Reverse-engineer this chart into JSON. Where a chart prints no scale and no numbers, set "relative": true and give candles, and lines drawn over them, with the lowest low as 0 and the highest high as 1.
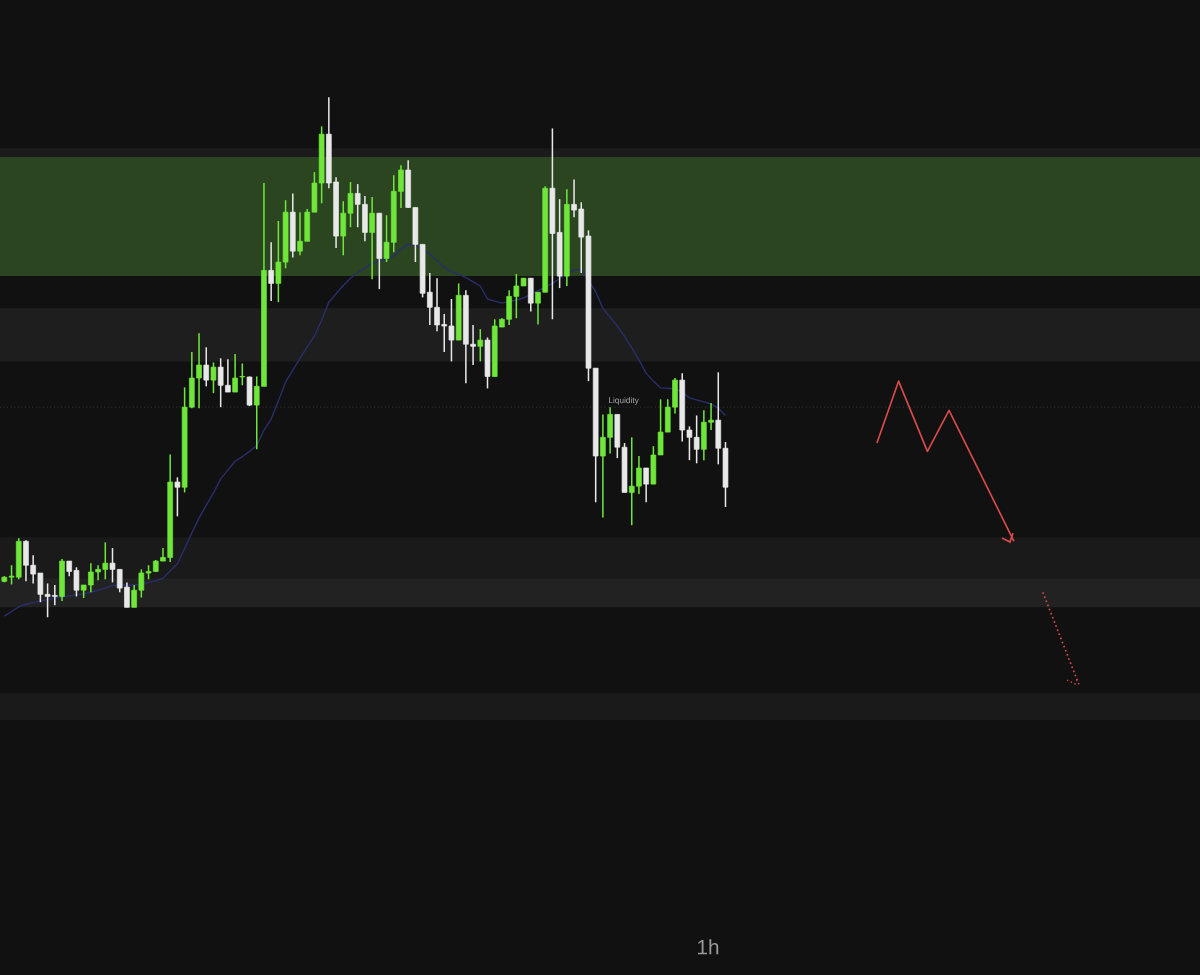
{
  "chart_data": {
    "type": "candlestick",
    "title": "1h",
    "relative": true,
    "categories": [
      null,
      null,
      null,
      null,
      null,
      null,
      null,
      null,
      null,
      null,
      null,
      null,
      null,
      null,
      null,
      null,
      null,
      null,
      null,
      null,
      null,
      null,
      null,
      null,
      null,
      null,
      null,
      null,
      null,
      null,
      null,
      null,
      null,
      null,
      null,
      null,
      null,
      null,
      null,
      null,
      null,
      null,
      null,
      null,
      null,
      null,
      null,
      null,
      null,
      null,
      null,
      null,
      null,
      null,
      null,
      null,
      null,
      null,
      null,
      null,
      null,
      null,
      null,
      null,
      null,
      null,
      null,
      null,
      null,
      null,
      null,
      null,
      null,
      null,
      null,
      null,
      null,
      null,
      null,
      null,
      null,
      null,
      null,
      null,
      null,
      null,
      null,
      null,
      null,
      null,
      null,
      null,
      null,
      null,
      null,
      null,
      null,
      null,
      null,
      null,
      null,
      null,
      null,
      null,
      null,
      null,
      null,
      null,
      null,
      null,
      null,
      null,
      null,
      null,
      null,
      null,
      null,
      null,
      null,
      null,
      null,
      null,
      null,
      null,
      null,
      null,
      null,
      null,
      null,
      null,
      null,
      null,
      null,
      null,
      null,
      null,
      null,
      null,
      null,
      null,
      null,
      null,
      null,
      null,
      null,
      null,
      null,
      null,
      null,
      null
    ],
    "ohlc": [
      [
        0.069,
        0.079,
        0.067,
        0.077
      ],
      [
        0.077,
        0.1,
        0.063,
        0.079
      ],
      [
        0.077,
        0.152,
        0.073,
        0.146
      ],
      [
        0.146,
        0.148,
        0.069,
        0.1
      ],
      [
        0.1,
        0.119,
        0.065,
        0.083
      ],
      [
        0.085,
        0.085,
        0.029,
        0.044
      ],
      [
        0.044,
        0.065,
        0,
        0.04
      ],
      [
        0.042,
        0.062,
        0.023,
        0.04
      ],
      [
        0.04,
        0.112,
        0.031,
        0.108
      ],
      [
        0.108,
        0.108,
        0.079,
        0.088
      ],
      [
        0.09,
        0.096,
        0.04,
        0.052
      ],
      [
        0.052,
        0.062,
        0.037,
        0.062
      ],
      [
        0.062,
        0.104,
        0.048,
        0.087
      ],
      [
        0.087,
        0.1,
        0.071,
        0.092
      ],
      [
        0.092,
        0.144,
        0.073,
        0.104
      ],
      [
        0.104,
        0.133,
        0.067,
        0.092
      ],
      [
        0.092,
        0.092,
        0.048,
        0.056
      ],
      [
        0.058,
        0.067,
        0.019,
        0.019
      ],
      [
        0.019,
        0.062,
        0.019,
        0.052
      ],
      [
        0.052,
        0.092,
        0.038,
        0.085
      ],
      [
        0.085,
        0.1,
        0.073,
        0.088
      ],
      [
        0.088,
        0.11,
        0.087,
        0.108
      ],
      [
        0.108,
        0.133,
        0.108,
        0.115
      ],
      [
        0.115,
        0.313,
        0.106,
        0.26
      ],
      [
        0.26,
        0.269,
        0.194,
        0.25
      ],
      [
        0.25,
        0.442,
        0.24,
        0.404
      ],
      [
        0.404,
        0.51,
        0.402,
        0.46
      ],
      [
        0.46,
        0.546,
        0.402,
        0.485
      ],
      [
        0.485,
        0.519,
        0.444,
        0.456
      ],
      [
        0.456,
        0.49,
        0.431,
        0.481
      ],
      [
        0.481,
        0.498,
        0.404,
        0.446
      ],
      [
        0.446,
        0.496,
        0.433,
        0.433
      ],
      [
        0.433,
        0.506,
        0.433,
        0.46
      ],
      [
        0.462,
        0.488,
        0.446,
        0.463
      ],
      [
        0.462,
        0.463,
        0.406,
        0.408
      ],
      [
        0.408,
        0.463,
        0.323,
        0.444
      ],
      [
        0.444,
        0.835,
        0.444,
        0.667
      ],
      [
        0.667,
        0.721,
        0.608,
        0.642
      ],
      [
        0.642,
        0.762,
        0.606,
        0.683
      ],
      [
        0.683,
        0.802,
        0.671,
        0.779
      ],
      [
        0.779,
        0.815,
        0.692,
        0.704
      ],
      [
        0.704,
        0.779,
        0.696,
        0.723
      ],
      [
        0.723,
        0.785,
        0.723,
        0.779
      ],
      [
        0.779,
        0.856,
        0.779,
        0.835
      ],
      [
        0.835,
        0.944,
        0.796,
        0.929
      ],
      [
        0.929,
        1,
        0.825,
        0.835
      ],
      [
        0.837,
        0.846,
        0.71,
        0.733
      ],
      [
        0.733,
        0.8,
        0.696,
        0.777
      ],
      [
        0.777,
        0.837,
        0.75,
        0.815
      ],
      [
        0.815,
        0.833,
        0.75,
        0.794
      ],
      [
        0.794,
        0.81,
        0.723,
        0.74
      ],
      [
        0.74,
        0.808,
        0.65,
        0.777
      ],
      [
        0.777,
        0.777,
        0.631,
        0.69
      ],
      [
        0.69,
        0.773,
        0.683,
        0.721
      ],
      [
        0.721,
        0.85,
        0.702,
        0.819
      ],
      [
        0.819,
        0.869,
        0.787,
        0.86
      ],
      [
        0.86,
        0.879,
        0.787,
        0.788
      ],
      [
        0.788,
        0.788,
        0.683,
        0.717
      ],
      [
        0.717,
        0.717,
        0.615,
        0.623
      ],
      [
        0.625,
        0.662,
        0.562,
        0.596
      ],
      [
        0.596,
        0.652,
        0.55,
        0.562
      ],
      [
        0.563,
        0.583,
        0.51,
        0.56
      ],
      [
        0.56,
        0.612,
        0.492,
        0.533
      ],
      [
        0.533,
        0.642,
        0.533,
        0.619
      ],
      [
        0.619,
        0.629,
        0.45,
        0.525
      ],
      [
        0.525,
        0.562,
        0.485,
        0.521
      ],
      [
        0.521,
        0.554,
        0.492,
        0.533
      ],
      [
        0.533,
        0.538,
        0.44,
        0.463
      ],
      [
        0.463,
        0.573,
        0.463,
        0.56
      ],
      [
        0.558,
        0.575,
        0.558,
        0.573
      ],
      [
        0.573,
        0.629,
        0.562,
        0.617
      ],
      [
        0.617,
        0.66,
        0.575,
        0.637
      ],
      [
        0.637,
        0.652,
        0.637,
        0.652
      ],
      [
        0.652,
        0.652,
        0.588,
        0.604
      ],
      [
        0.604,
        0.625,
        0.563,
        0.625
      ],
      [
        0.625,
        0.829,
        0.625,
        0.825
      ],
      [
        0.825,
        0.94,
        0.573,
        0.738
      ],
      [
        0.74,
        0.804,
        0.633,
        0.656
      ],
      [
        0.656,
        0.823,
        0.637,
        0.794
      ],
      [
        0.794,
        0.842,
        0.769,
        0.783
      ],
      [
        0.785,
        0.798,
        0.662,
        0.731
      ],
      [
        0.733,
        0.744,
        0.454,
        0.479
      ],
      [
        0.479,
        0.479,
        0.221,
        0.31
      ],
      [
        0.31,
        0.39,
        0.192,
        0.346
      ],
      [
        0.346,
        0.404,
        0.315,
        0.39
      ],
      [
        0.39,
        0.39,
        0.306,
        0.327
      ],
      [
        0.327,
        0.335,
        0.24,
        0.24
      ],
      [
        0.24,
        0.346,
        0.177,
        0.252
      ],
      [
        0.252,
        0.31,
        0.237,
        0.287
      ],
      [
        0.287,
        0.287,
        0.221,
        0.256
      ],
      [
        0.256,
        0.329,
        0.256,
        0.312
      ],
      [
        0.312,
        0.419,
        0.312,
        0.356
      ],
      [
        0.356,
        0.419,
        0.356,
        0.404
      ],
      [
        0.404,
        0.46,
        0.392,
        0.456
      ],
      [
        0.456,
        0.469,
        0.338,
        0.36
      ],
      [
        0.36,
        0.367,
        0.302,
        0.346
      ],
      [
        0.346,
        0.388,
        0.296,
        0.323
      ],
      [
        0.323,
        0.398,
        0.302,
        0.375
      ],
      [
        0.375,
        0.412,
        0.36,
        0.379
      ],
      [
        0.379,
        0.471,
        0.294,
        0.325
      ],
      [
        0.325,
        0.337,
        0.212,
        0.25
      ],
      null,
      null,
      null,
      null,
      null,
      null,
      null,
      null,
      null,
      null,
      null,
      null,
      null,
      null,
      null,
      null,
      null,
      null,
      null,
      null,
      null,
      null,
      null,
      null,
      null,
      null,
      null,
      null,
      null,
      null,
      null,
      null,
      null,
      null,
      null,
      null,
      null,
      null,
      null,
      null,
      null,
      null,
      null,
      null,
      null,
      null,
      null,
      null,
      null
    ],
    "colors": [
      "#6fe63a",
      "#6fe63a",
      "#6fe63a",
      "#e8e8e8",
      "#e8e8e8",
      "#e8e8e8",
      "#e8e8e8",
      "#e8e8e8",
      "#6fe63a",
      "#e8e8e8",
      "#e8e8e8",
      "#6fe63a",
      "#6fe63a",
      "#6fe63a",
      "#6fe63a",
      "#e8e8e8",
      "#e8e8e8",
      "#e8e8e8",
      "#6fe63a",
      "#6fe63a",
      "#6fe63a",
      "#6fe63a",
      "#6fe63a",
      "#6fe63a",
      "#e8e8e8",
      "#6fe63a",
      "#6fe63a",
      "#6fe63a",
      "#e8e8e8",
      "#6fe63a",
      "#e8e8e8",
      "#e8e8e8",
      "#6fe63a",
      "#6fe63a",
      "#e8e8e8",
      "#6fe63a",
      "#6fe63a",
      "#e8e8e8",
      "#6fe63a",
      "#6fe63a",
      "#e8e8e8",
      "#6fe63a",
      "#6fe63a",
      "#6fe63a",
      "#6fe63a",
      "#e8e8e8",
      "#e8e8e8",
      "#6fe63a",
      "#6fe63a",
      "#e8e8e8",
      "#e8e8e8",
      "#6fe63a",
      "#e8e8e8",
      "#6fe63a",
      "#6fe63a",
      "#6fe63a",
      "#e8e8e8",
      "#e8e8e8",
      "#e8e8e8",
      "#e8e8e8",
      "#e8e8e8",
      "#e8e8e8",
      "#e8e8e8",
      "#6fe63a",
      "#e8e8e8",
      "#e8e8e8",
      "#6fe63a",
      "#e8e8e8",
      "#6fe63a",
      "#6fe63a",
      "#6fe63a",
      "#6fe63a",
      "#6fe63a",
      "#e8e8e8",
      "#6fe63a",
      "#6fe63a",
      "#e8e8e8",
      "#e8e8e8",
      "#6fe63a",
      "#e8e8e8",
      "#e8e8e8",
      "#e8e8e8",
      "#e8e8e8",
      "#6fe63a",
      "#6fe63a",
      "#e8e8e8",
      "#e8e8e8",
      "#6fe63a",
      "#6fe63a",
      "#e8e8e8",
      "#6fe63a",
      "#6fe63a",
      "#6fe63a",
      "#6fe63a",
      "#e8e8e8",
      "#e8e8e8",
      "#e8e8e8",
      "#6fe63a",
      "#6fe63a",
      "#e8e8e8",
      "#e8e8e8",
      null,
      null,
      null,
      null,
      null,
      null,
      null,
      null,
      null,
      null,
      null,
      null,
      null,
      null,
      null,
      null,
      null,
      null,
      null,
      null,
      null,
      null,
      null,
      null,
      null,
      null,
      null,
      null,
      null,
      null,
      null,
      null,
      null,
      null,
      null,
      null,
      null,
      null,
      null,
      null,
      null,
      null,
      null,
      null,
      null,
      null,
      null,
      null,
      null
    ],
    "series": [
      {
        "type": "line",
        "color": "#2a2e6c",
        "values": [
          0.002,
          0.011,
          0.02,
          0.025,
          0.028,
          0.031,
          0.034,
          0.037,
          0.039,
          0.041,
          0.043,
          0.045,
          0.048,
          0.052,
          0.056,
          0.061,
          0.062,
          0.062,
          0.062,
          0.064,
          0.067,
          0.07,
          0.075,
          0.089,
          0.103,
          0.132,
          0.162,
          0.191,
          0.215,
          0.239,
          0.266,
          0.283,
          0.3,
          0.309,
          0.319,
          0.33,
          0.36,
          0.381,
          0.416,
          0.452,
          0.475,
          0.498,
          0.52,
          0.541,
          0.571,
          0.606,
          0.622,
          0.638,
          0.652,
          0.663,
          0.672,
          0.681,
          0.685,
          0.689,
          0.695,
          0.708,
          0.717,
          0.715,
          0.708,
          0.698,
          0.686,
          0.673,
          0.664,
          0.66,
          0.653,
          0.645,
          0.637,
          0.612,
          0.608,
          0.604,
          0.607,
          0.61,
          0.614,
          0.621,
          0.628,
          0.635,
          0.642,
          0.651,
          0.661,
          0.668,
          0.669,
          0.648,
          0.626,
          0.594,
          0.577,
          0.56,
          0.54,
          0.518,
          0.495,
          0.469,
          0.454,
          0.441,
          0.44,
          0.44,
          0.432,
          0.422,
          0.418,
          0.414,
          0.41,
          0.402,
          0.388,
          null,
          null,
          null,
          null,
          null,
          null,
          null,
          null,
          null,
          null,
          null,
          null,
          null,
          null,
          null,
          null,
          null,
          null,
          null,
          null,
          null,
          null,
          null,
          null,
          null,
          null,
          null,
          null,
          null,
          null,
          null,
          null,
          null,
          null,
          null,
          null,
          null,
          null,
          null,
          null,
          null,
          null,
          null,
          null,
          null,
          null,
          null,
          null,
          null
        ]
      },
      {
        "type": "line",
        "color": "#d94a4a",
        "line_style": "solid",
        "values": [
          null,
          null,
          null,
          null,
          null,
          null,
          null,
          null,
          null,
          null,
          null,
          null,
          null,
          null,
          null,
          null,
          null,
          null,
          null,
          null,
          null,
          null,
          null,
          null,
          null,
          null,
          null,
          null,
          null,
          null,
          null,
          null,
          null,
          null,
          null,
          null,
          null,
          null,
          null,
          null,
          null,
          null,
          null,
          null,
          null,
          null,
          null,
          null,
          null,
          null,
          null,
          null,
          null,
          null,
          null,
          null,
          null,
          null,
          null,
          null,
          null,
          null,
          null,
          null,
          null,
          null,
          null,
          null,
          null,
          null,
          null,
          null,
          null,
          null,
          null,
          null,
          null,
          null,
          null,
          null,
          null,
          null,
          null,
          null,
          null,
          null,
          null,
          null,
          null,
          null,
          null,
          null,
          null,
          null,
          null,
          null,
          null,
          null,
          null,
          null,
          null,
          null,
          null,
          null,
          null,
          null,
          null,
          null,
          null,
          null,
          null,
          null,
          null,
          null,
          null,
          null,
          null,
          null,
          null,
          null,
          null,
          0.335,
          null,
          null,
          0.454,
          null,
          null,
          null,
          0.319,
          null,
          null,
          0.398,
          null,
          null,
          null,
          null,
          null,
          null,
          null,
          null,
          0.146,
          null,
          null,
          null,
          null,
          null,
          null,
          null,
          null,
          null
        ]
      },
      {
        "type": "line",
        "color": "#d94a4a",
        "line_style": "dotted",
        "values": [
          null,
          null,
          null,
          null,
          null,
          null,
          null,
          null,
          null,
          null,
          null,
          null,
          null,
          null,
          null,
          null,
          null,
          null,
          null,
          null,
          null,
          null,
          null,
          null,
          null,
          null,
          null,
          null,
          null,
          null,
          null,
          null,
          null,
          null,
          null,
          null,
          null,
          null,
          null,
          null,
          null,
          null,
          null,
          null,
          null,
          null,
          null,
          null,
          null,
          null,
          null,
          null,
          null,
          null,
          null,
          null,
          null,
          null,
          null,
          null,
          null,
          null,
          null,
          null,
          null,
          null,
          null,
          null,
          null,
          null,
          null,
          null,
          null,
          null,
          null,
          null,
          null,
          null,
          null,
          null,
          null,
          null,
          null,
          null,
          null,
          null,
          null,
          null,
          null,
          null,
          null,
          null,
          null,
          null,
          null,
          null,
          null,
          null,
          null,
          null,
          null,
          null,
          null,
          null,
          null,
          null,
          null,
          null,
          null,
          null,
          null,
          null,
          null,
          null,
          null,
          null,
          null,
          null,
          null,
          null,
          null,
          null,
          null,
          null,
          null,
          null,
          null,
          null,
          null,
          null,
          null,
          null,
          null,
          null,
          null,
          null,
          null,
          null,
          null,
          null,
          null,
          null,
          null,
          null,
          0.048,
          null,
          null,
          null,
          null,
          -0.129
        ]
      }
    ],
    "ref_lines": [
      {
        "axis": "y",
        "value": 0.404,
        "label": "Liquidity",
        "color": "#3b4a48",
        "line_style": "dotted"
      }
    ],
    "bands": [
      {
        "axis": "y",
        "from": 0.821,
        "to": 0.902,
        "color": "#1b1b1b"
      },
      {
        "axis": "y",
        "from": 0.492,
        "to": 0.594,
        "color": "#1e1e1e"
      },
      {
        "axis": "y",
        "from": 0.075,
        "to": 0.154,
        "color": "#1a1a1a"
      },
      {
        "axis": "y",
        "from": 0.019,
        "to": 0.075,
        "color": "#222222"
      },
      {
        "axis": "y",
        "from": -0.198,
        "to": -0.146,
        "color": "#1a1a1a"
      },
      {
        "axis": "y",
        "from": 0.677,
        "to": 0.885,
        "color": "#2a4520"
      },
      {
        "axis": "y",
        "from": 0.656,
        "to": 0.81,
        "color": "#2a4520"
      }
    ]
  }
}
